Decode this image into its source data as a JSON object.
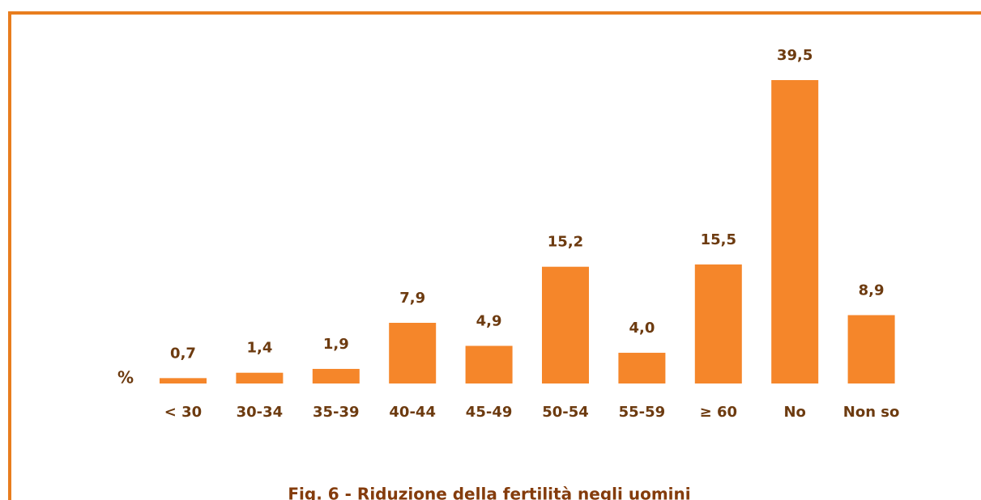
{
  "chart_data": {
    "type": "bar",
    "title": "Fig. 6 - Riduzione della fertilità negli uomini",
    "ylabel": "%",
    "categories": [
      "< 30",
      "30-34",
      "35-39",
      "40-44",
      "45-49",
      "50-54",
      "55-59",
      "≥ 60",
      "No",
      "Non so"
    ],
    "values": [
      0.7,
      1.4,
      1.9,
      7.9,
      4.9,
      15.2,
      4.0,
      15.5,
      39.5,
      8.9
    ],
    "value_labels": [
      "0,7",
      "1,4",
      "1,9",
      "7,9",
      "4,9",
      "15,2",
      "4,0",
      "15,5",
      "39,5",
      "8,9"
    ],
    "color": "#f5862a"
  }
}
